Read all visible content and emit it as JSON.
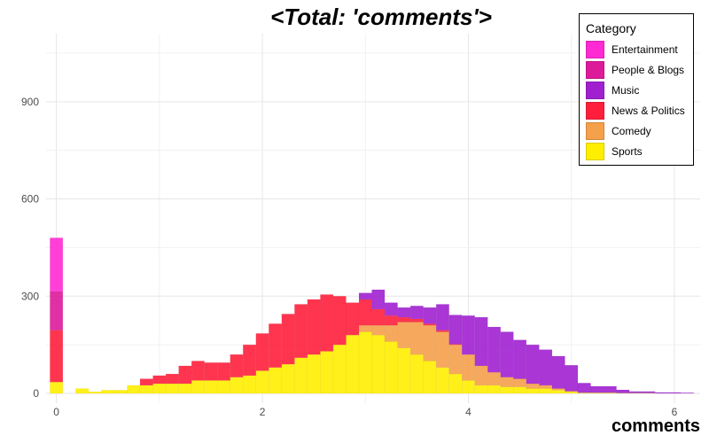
{
  "chart_data": {
    "type": "histogram",
    "title": "<Total: 'comments'>",
    "xlabel": "comments",
    "ylabel": "",
    "xlim": [
      -0.1,
      6.25
    ],
    "ylim": [
      -30,
      1110
    ],
    "x_ticks": [
      0,
      2,
      4,
      6
    ],
    "y_ticks": [
      0,
      300,
      600,
      900
    ],
    "grid": true,
    "stacked": true,
    "legend_title": "Category",
    "legend_position": "top-right",
    "bin_width": 0.125,
    "bin_starts": [
      -0.0625,
      0.0625,
      0.1875,
      0.3125,
      0.4375,
      0.5625,
      0.6875,
      0.8125,
      0.9375,
      1.0625,
      1.1875,
      1.3125,
      1.4375,
      1.5625,
      1.6875,
      1.8125,
      1.9375,
      2.0625,
      2.1875,
      2.3125,
      2.4375,
      2.5625,
      2.6875,
      2.8125,
      2.9375,
      3.0625,
      3.1875,
      3.3125,
      3.4375,
      3.5625,
      3.6875,
      3.8125,
      3.9375,
      4.0625,
      4.1875,
      4.3125,
      4.4375,
      4.5625,
      4.6875,
      4.8125,
      4.9375,
      5.0625,
      5.1875,
      5.3125,
      5.4375,
      5.5625,
      5.6875,
      5.8125,
      5.9375,
      6.0625
    ],
    "series": [
      {
        "name": "Sports",
        "color": "#FFEE00",
        "values": [
          35,
          0,
          15,
          5,
          10,
          10,
          25,
          25,
          30,
          30,
          30,
          40,
          40,
          40,
          50,
          55,
          70,
          80,
          90,
          110,
          120,
          130,
          150,
          180,
          190,
          180,
          160,
          140,
          120,
          100,
          80,
          60,
          40,
          25,
          25,
          20,
          20,
          15,
          15,
          10,
          5,
          2,
          2,
          2,
          1,
          1,
          1,
          0,
          0,
          0
        ]
      },
      {
        "name": "Comedy",
        "color": "#F5A04A",
        "values": [
          0,
          0,
          0,
          0,
          0,
          0,
          0,
          0,
          0,
          0,
          0,
          0,
          0,
          0,
          0,
          0,
          0,
          0,
          0,
          0,
          0,
          0,
          0,
          0,
          20,
          30,
          50,
          80,
          100,
          110,
          110,
          90,
          80,
          60,
          40,
          30,
          25,
          15,
          10,
          5,
          2,
          0,
          0,
          0,
          0,
          0,
          0,
          0,
          0,
          0
        ]
      },
      {
        "name": "News & Politics",
        "color": "#FF1F3C",
        "values": [
          160,
          0,
          0,
          0,
          0,
          0,
          0,
          20,
          25,
          30,
          55,
          60,
          55,
          55,
          70,
          95,
          115,
          135,
          155,
          165,
          170,
          175,
          150,
          100,
          80,
          50,
          30,
          15,
          10,
          5,
          5,
          2,
          0,
          0,
          0,
          0,
          0,
          0,
          0,
          0,
          0,
          0,
          0,
          0,
          0,
          0,
          0,
          0,
          0,
          0
        ]
      },
      {
        "name": "Music",
        "color": "#A020D0",
        "values": [
          0,
          0,
          0,
          0,
          0,
          0,
          0,
          0,
          0,
          0,
          0,
          0,
          0,
          0,
          0,
          0,
          0,
          0,
          0,
          0,
          0,
          0,
          0,
          0,
          20,
          60,
          40,
          30,
          40,
          50,
          80,
          90,
          120,
          150,
          140,
          140,
          120,
          120,
          110,
          100,
          80,
          30,
          20,
          20,
          10,
          5,
          5,
          3,
          3,
          2
        ]
      },
      {
        "name": "People & Blogs",
        "color": "#DD1A9A",
        "values": [
          120,
          0,
          0,
          0,
          0,
          0,
          0,
          0,
          0,
          0,
          0,
          0,
          0,
          0,
          0,
          0,
          0,
          0,
          0,
          0,
          0,
          0,
          0,
          0,
          0,
          0,
          0,
          0,
          0,
          0,
          0,
          0,
          0,
          0,
          0,
          0,
          0,
          0,
          0,
          0,
          0,
          0,
          0,
          0,
          0,
          0,
          0,
          0,
          0,
          0
        ]
      },
      {
        "name": "Entertainment",
        "color": "#FF2AD4",
        "values": [
          165,
          0,
          0,
          0,
          0,
          0,
          0,
          0,
          0,
          0,
          0,
          0,
          0,
          0,
          0,
          0,
          0,
          0,
          0,
          0,
          0,
          0,
          0,
          0,
          0,
          0,
          0,
          0,
          0,
          0,
          0,
          0,
          0,
          0,
          0,
          0,
          0,
          0,
          0,
          0,
          0,
          0,
          0,
          0,
          0,
          0,
          0,
          0,
          0,
          0
        ]
      }
    ]
  },
  "legend": {
    "title": "Category",
    "items": [
      {
        "label": "Entertainment",
        "color": "#FF2AD4"
      },
      {
        "label": "People & Blogs",
        "color": "#DD1A9A"
      },
      {
        "label": "Music",
        "color": "#A020D0"
      },
      {
        "label": "News & Politics",
        "color": "#FF1F3C"
      },
      {
        "label": "Comedy",
        "color": "#F5A04A"
      },
      {
        "label": "Sports",
        "color": "#FFEE00"
      }
    ]
  }
}
